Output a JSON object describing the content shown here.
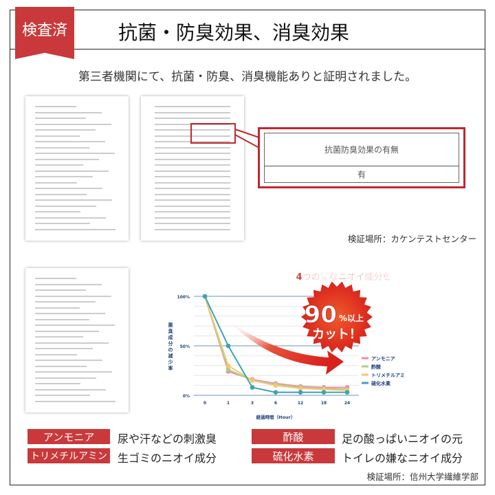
{
  "header": {
    "badge": "検査済",
    "title": "抗菌・防臭効果、消臭効果"
  },
  "subtitle": "第三者機関にて、抗菌・防臭、消臭機能ありと証明されました。",
  "callout": {
    "row1": "抗菌防臭効果の有無",
    "row2": "有"
  },
  "caption1": "検証場所：カケンテストセンター",
  "caption2": "検証場所：信州大学繊維学部",
  "chart_data": {
    "type": "line",
    "headline": "4つの嫌なニオイ成分を",
    "starburst": {
      "big": "90",
      "small": "%以上",
      "line2": "カット！"
    },
    "ylabel": "悪臭成分の減少率",
    "xlabel": "経過時間（Hour）",
    "categories": [
      "0",
      "1",
      "3",
      "6",
      "12",
      "18",
      "24"
    ],
    "yticks": [
      "0%",
      "50%",
      "100%"
    ],
    "ylim": [
      0,
      100
    ],
    "grid": true,
    "legend_position": "right",
    "series": [
      {
        "name": "アンモニア",
        "color": "#ee8fa6",
        "values": [
          100,
          24,
          16,
          12,
          9,
          8,
          8
        ]
      },
      {
        "name": "酢酸",
        "color": "#a8d08d",
        "values": [
          100,
          26,
          15,
          11,
          8,
          7,
          6
        ]
      },
      {
        "name": "トリメチルアミン",
        "color": "#f5c66e",
        "values": [
          100,
          30,
          15,
          10,
          7,
          6,
          5
        ]
      },
      {
        "name": "硫化水素",
        "color": "#3aa3b5",
        "values": [
          100,
          50,
          8,
          3,
          3,
          3,
          3
        ]
      }
    ]
  },
  "odors": [
    {
      "name": "アンモニア",
      "desc": "尿や汗などの刺激臭"
    },
    {
      "name": "酢酸",
      "desc": "足の酸っぱいニオイの元"
    },
    {
      "name": "トリメチルアミン",
      "desc": "生ゴミのニオイ成分"
    },
    {
      "name": "硫化水素",
      "desc": "トイレの嫌なニオイ成分"
    }
  ],
  "colors": {
    "accent": "#c9393b",
    "callout": "#c1272d",
    "axis": "#1f3f7a"
  }
}
